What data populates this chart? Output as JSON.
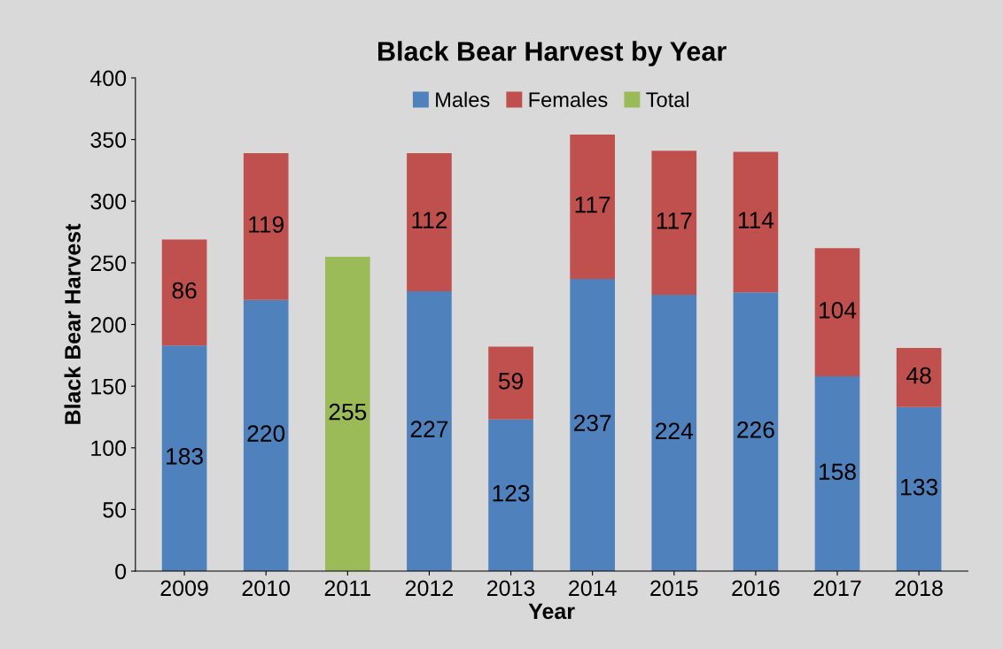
{
  "chart_data": {
    "type": "bar",
    "title": "Black Bear Harvest by Year",
    "xlabel": "Year",
    "ylabel": "Black Bear Harvest",
    "categories": [
      "2009",
      "2010",
      "2011",
      "2012",
      "2013",
      "2014",
      "2015",
      "2016",
      "2017",
      "2018"
    ],
    "stacked": true,
    "data_labels": true,
    "grid": false,
    "legend": "top",
    "ylim": [
      0,
      400
    ],
    "yticks": [
      0,
      50,
      100,
      150,
      200,
      250,
      300,
      350,
      400
    ],
    "series": [
      {
        "name": "Males",
        "color": "#4f81bd",
        "values": [
          183,
          220,
          null,
          227,
          123,
          237,
          224,
          226,
          158,
          133
        ]
      },
      {
        "name": "Females",
        "color": "#c0504d",
        "values": [
          86,
          119,
          null,
          112,
          59,
          117,
          117,
          114,
          104,
          48
        ]
      },
      {
        "name": "Total",
        "color": "#9bbb59",
        "values": [
          null,
          null,
          255,
          null,
          null,
          null,
          null,
          null,
          null,
          null
        ]
      }
    ]
  }
}
